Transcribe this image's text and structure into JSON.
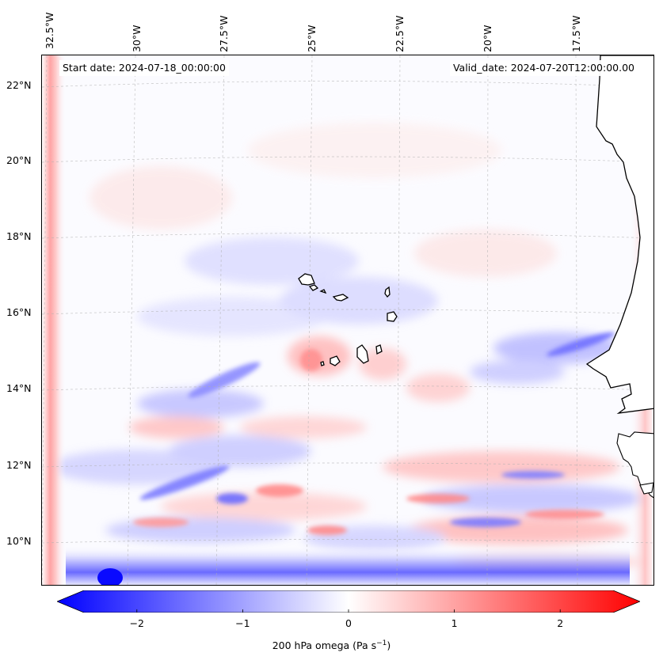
{
  "map": {
    "start_date": "Start date: 2024-07-18_00:00:00",
    "valid_date": "Valid_date: 2024-07-20T12:00:00.00",
    "lon_labels": [
      "32.5°W",
      "30°W",
      "27.5°W",
      "25°W",
      "22.5°W",
      "20°W",
      "17.5°W"
    ],
    "lat_labels": [
      "22°N",
      "20°N",
      "18°N",
      "16°N",
      "14°N",
      "12°N",
      "10°N"
    ],
    "lon_range": [
      -33.0,
      -15.8
    ],
    "lat_range": [
      8.9,
      22.8
    ]
  },
  "colorbar": {
    "ticks": [
      "−2",
      "−1",
      "0",
      "1",
      "2"
    ],
    "tick_values": [
      -2,
      -1,
      0,
      1,
      2
    ],
    "range": [
      -2.5,
      2.5
    ],
    "label": "200 hPa omega (Pa s",
    "label_sup": "−1",
    "label_end": ")",
    "colormap": "bwr",
    "extend": "both",
    "color_min": "#0000ff",
    "color_mid": "#ffffff",
    "color_max": "#ff0000"
  }
}
